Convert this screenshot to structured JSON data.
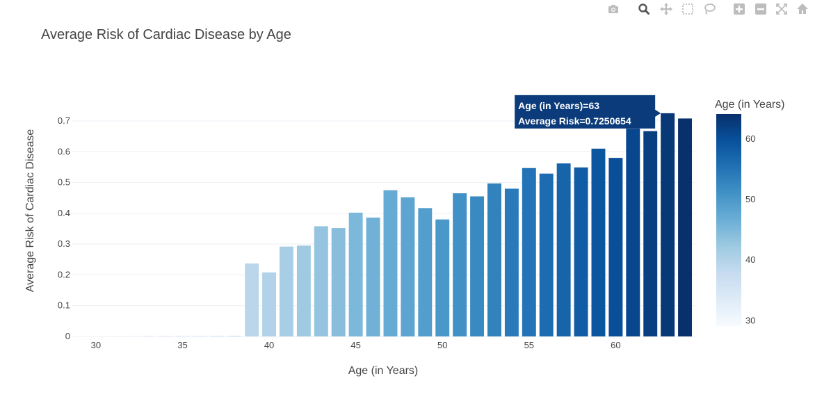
{
  "modebar": {
    "buttons": [
      {
        "name": "camera-icon"
      },
      {
        "name": "zoom-icon"
      },
      {
        "name": "pan-icon"
      },
      {
        "name": "box-select-icon"
      },
      {
        "name": "lasso-select-icon"
      },
      {
        "name": "zoom-in-icon"
      },
      {
        "name": "zoom-out-icon"
      },
      {
        "name": "autoscale-icon"
      },
      {
        "name": "reset-axes-icon"
      }
    ]
  },
  "chart_data": {
    "type": "bar",
    "title": "Average Risk of Cardiac Disease by Age",
    "xlabel": "Age (in Years)",
    "ylabel": "Average Risk of Cardiac Disease",
    "xlim": [
      28.6,
      64.6
    ],
    "ylim": [
      0,
      0.7632
    ],
    "xticks": [
      "30",
      "35",
      "40",
      "45",
      "50",
      "55",
      "60"
    ],
    "yticks": [
      "0",
      "0.1",
      "0.2",
      "0.3",
      "0.4",
      "0.5",
      "0.6",
      "0.7"
    ],
    "grid": true,
    "x": [
      29,
      30,
      31,
      32,
      33,
      34,
      35,
      36,
      37,
      38,
      39,
      40,
      41,
      42,
      43,
      44,
      45,
      46,
      47,
      48,
      49,
      50,
      51,
      52,
      53,
      54,
      55,
      56,
      57,
      58,
      59,
      60,
      61,
      62,
      63,
      64
    ],
    "values": [
      0.002,
      0.002,
      0.002,
      0.002,
      0.002,
      0.002,
      0.002,
      0.002,
      0.002,
      0.002,
      0.237,
      0.208,
      0.292,
      0.295,
      0.358,
      0.352,
      0.402,
      0.386,
      0.475,
      0.452,
      0.417,
      0.38,
      0.465,
      0.455,
      0.497,
      0.48,
      0.547,
      0.529,
      0.562,
      0.549,
      0.61,
      0.58,
      0.675,
      0.667,
      0.7250654,
      0.708
    ],
    "colorbar": {
      "title": "Age (in Years)",
      "range": [
        29,
        64
      ],
      "ticks": [
        "30",
        "40",
        "50",
        "60"
      ],
      "colorscale": [
        "#f7fbff",
        "#deebf7",
        "#c6dbef",
        "#9ecae1",
        "#6baed6",
        "#4292c6",
        "#2171b5",
        "#08519c",
        "#08306b"
      ]
    },
    "hover": {
      "age": 63,
      "line1": "Age (in Years)=63",
      "line2": "Average Risk=0.7250654",
      "bg": "#0b3b7a"
    }
  }
}
